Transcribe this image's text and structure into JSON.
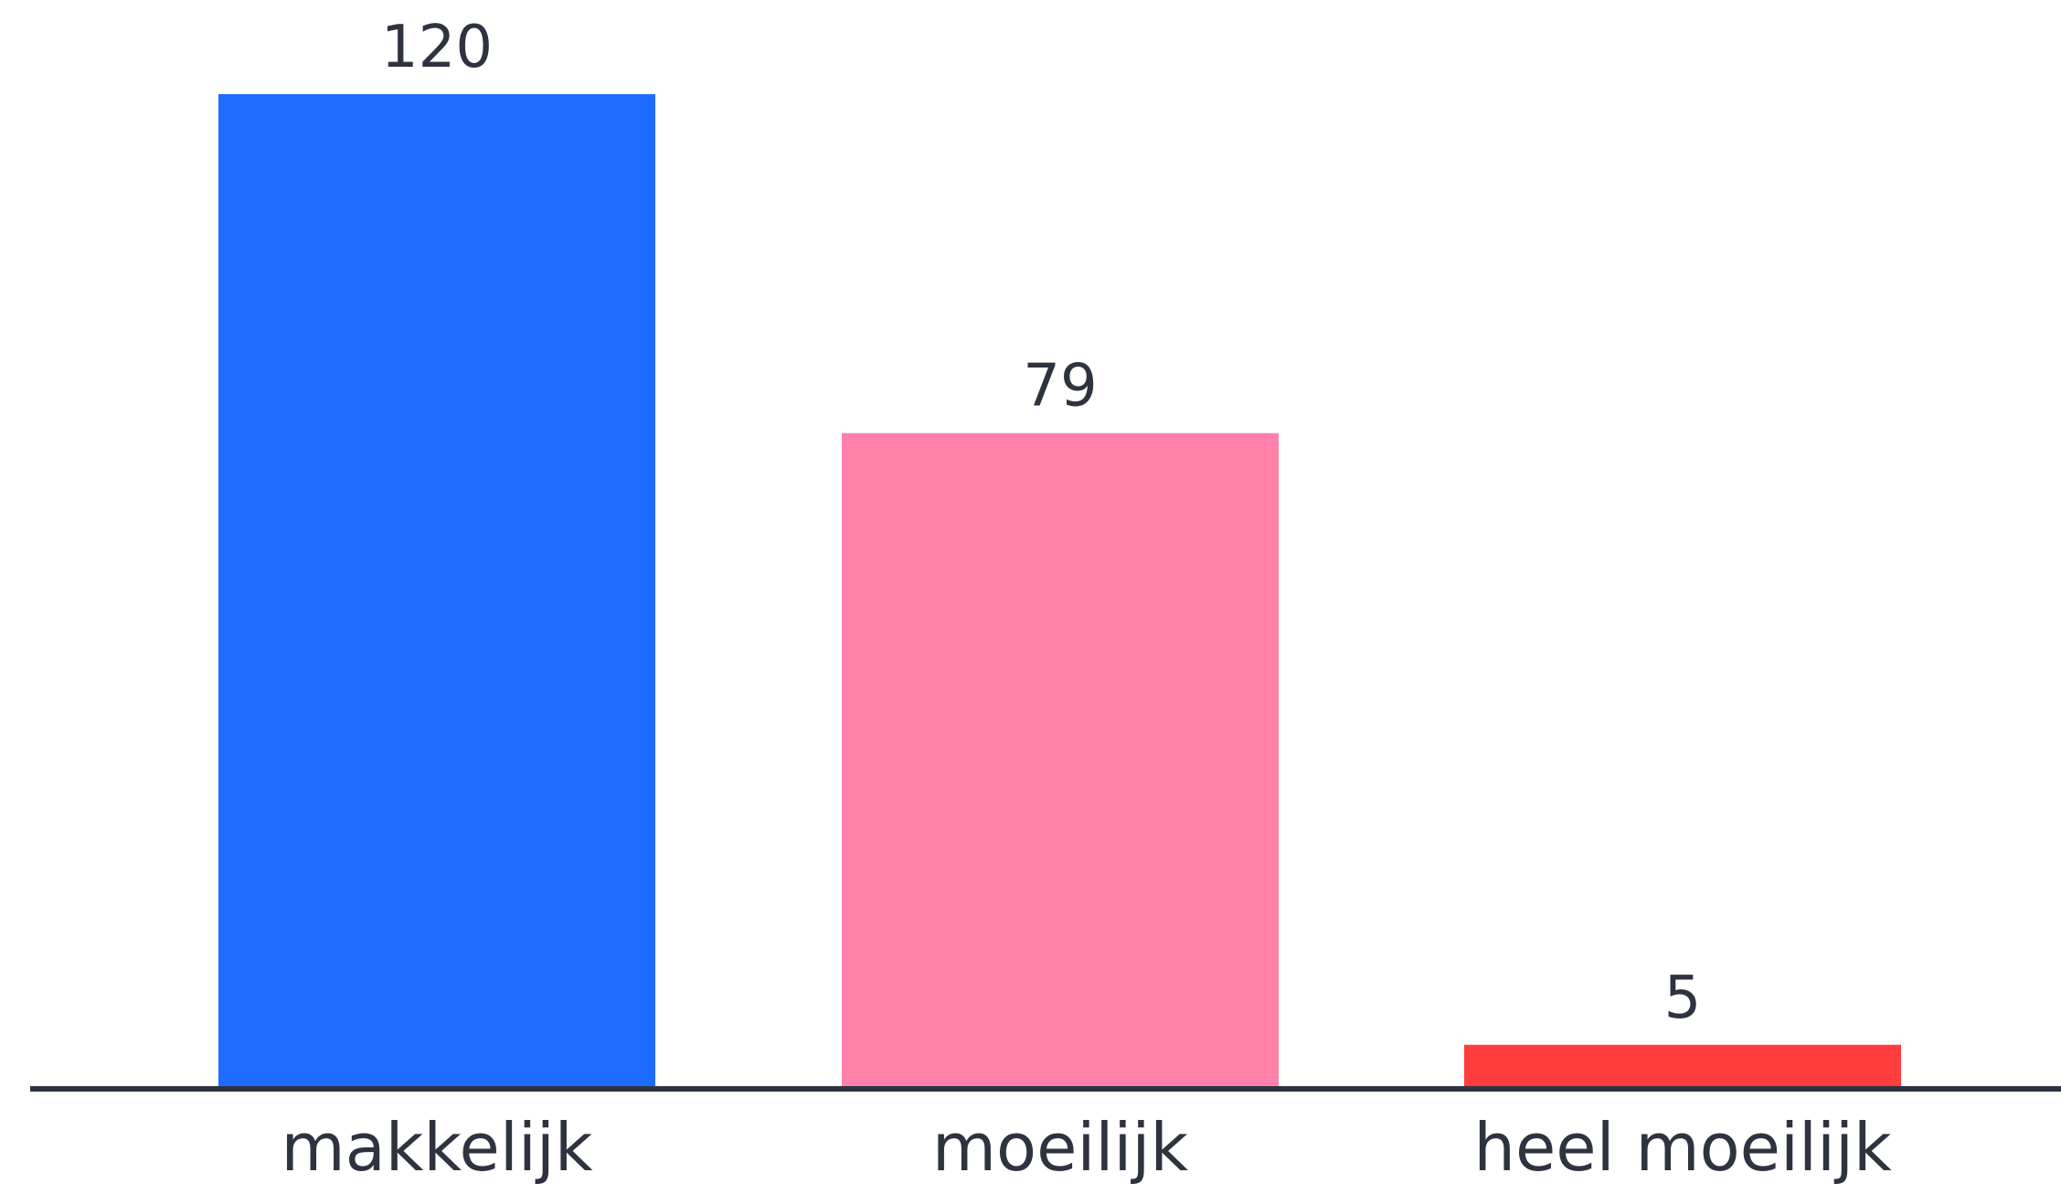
{
  "chart_data": {
    "type": "bar",
    "categories": [
      "makkelijk",
      "moeilijk",
      "heel moeilijk"
    ],
    "values": [
      120,
      79,
      5
    ],
    "colors": [
      "#1E6BFF",
      "#FF81AA",
      "#FF3D3D"
    ],
    "data_labels": [
      "120",
      "79",
      "5"
    ],
    "ylim": [
      0,
      120
    ],
    "grid": false,
    "axis_color": "#2f3340"
  }
}
